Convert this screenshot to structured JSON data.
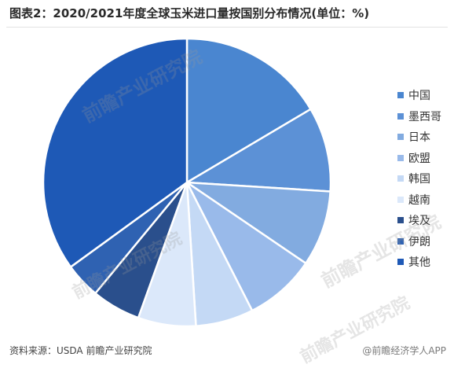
{
  "chart_data": {
    "type": "pie",
    "title": "图表2：2020/2021年度全球玉米进口量按国别分布情况(单位：%)",
    "categories": [
      "中国",
      "墨西哥",
      "日本",
      "欧盟",
      "韩国",
      "越南",
      "埃及",
      "伊朗",
      "其他"
    ],
    "values": [
      16.5,
      9.5,
      8.5,
      8.0,
      6.5,
      6.5,
      5.5,
      4.0,
      35.0
    ],
    "colors": [
      "#4a86d0",
      "#5c91d6",
      "#82abe0",
      "#99baea",
      "#c4d9f5",
      "#dbe8fa",
      "#2a4f8c",
      "#2f62b2",
      "#1e59b6"
    ],
    "start_angle_deg": 0,
    "direction": "clockwise",
    "legend_position": "right"
  },
  "source_text": "资料来源：USDA 前瞻产业研究院",
  "watermark_text": "前瞻产业研究院",
  "credit_text": "@前瞻经济学人APP",
  "icons": {
    "legend_marker": "square-swatch"
  }
}
